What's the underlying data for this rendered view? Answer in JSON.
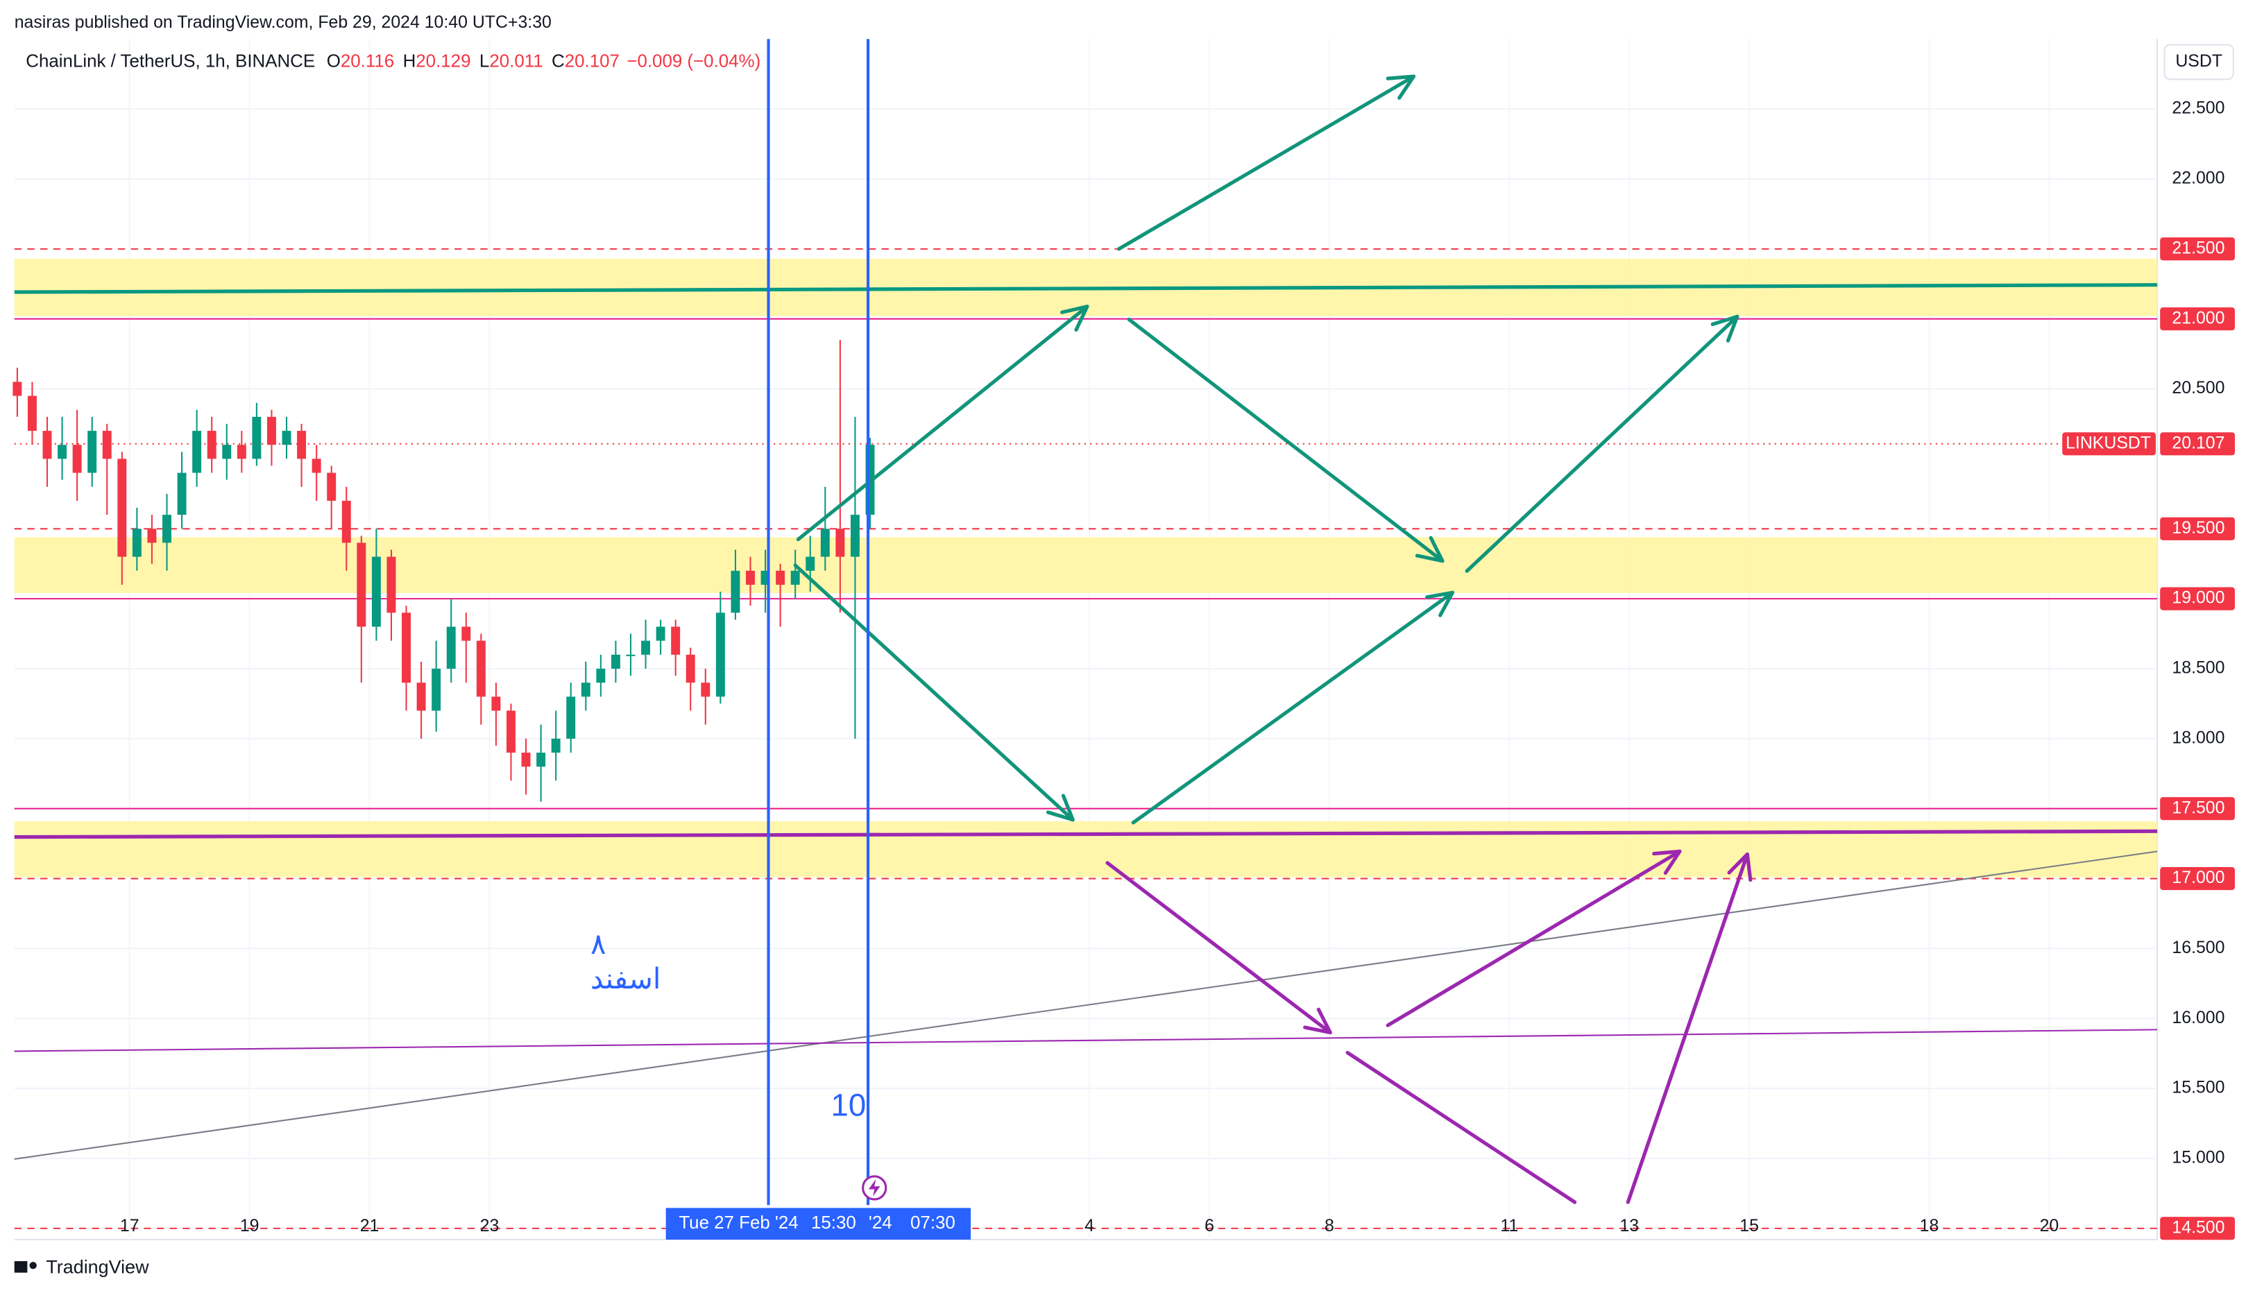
{
  "header": "nasiras published on TradingView.com, Feb 29, 2024 10:40 UTC+3:30",
  "footer": "TradingView",
  "currency": "USDT",
  "chart_data": {
    "type": "candlestick",
    "title": "ChainLink / TetherUS, 1h, BINANCE",
    "ohlc_legend": [
      {
        "key": "O",
        "value": 20.116
      },
      {
        "key": "H",
        "value": 20.129
      },
      {
        "key": "L",
        "value": 20.011
      },
      {
        "key": "C",
        "value": 20.107
      }
    ],
    "change": "−0.009 (−0.04%)",
    "up_color": "#089981",
    "down_color": "#f23645",
    "open": [
      20.55,
      20.45,
      20.2,
      20.0,
      20.1,
      19.9,
      20.2,
      20.0,
      19.3,
      19.5,
      19.4,
      19.6,
      19.9,
      20.2,
      20.0,
      20.1,
      20.0,
      20.3,
      20.1,
      20.2,
      20.0,
      19.9,
      19.7,
      19.4,
      18.8,
      19.3,
      18.9,
      18.4,
      18.2,
      18.5,
      18.8,
      18.7,
      18.3,
      18.2,
      17.9,
      17.8,
      17.9,
      18.0,
      18.3,
      18.4,
      18.5,
      18.6,
      18.6,
      18.7,
      18.8,
      18.6,
      18.4,
      18.3,
      18.9,
      19.2,
      19.1,
      19.2,
      19.1,
      19.2,
      19.3,
      19.5,
      19.3,
      19.6
    ],
    "high": [
      20.65,
      20.55,
      20.3,
      20.3,
      20.35,
      20.3,
      20.25,
      20.05,
      19.65,
      19.6,
      19.75,
      20.05,
      20.35,
      20.3,
      20.25,
      20.2,
      20.4,
      20.35,
      20.3,
      20.25,
      20.1,
      19.95,
      19.8,
      19.45,
      19.5,
      19.35,
      18.95,
      18.55,
      18.7,
      19.0,
      18.9,
      18.75,
      18.4,
      18.25,
      18.0,
      18.1,
      18.2,
      18.4,
      18.55,
      18.6,
      18.7,
      18.75,
      18.85,
      18.85,
      18.85,
      18.65,
      18.5,
      19.05,
      19.35,
      19.3,
      19.35,
      19.25,
      19.35,
      19.45,
      19.8,
      20.85,
      20.3,
      20.15
    ],
    "low": [
      20.3,
      20.1,
      19.8,
      19.85,
      19.7,
      19.8,
      19.6,
      19.1,
      19.2,
      19.25,
      19.2,
      19.5,
      19.8,
      19.9,
      19.85,
      19.9,
      19.95,
      19.95,
      20.0,
      19.8,
      19.7,
      19.5,
      19.2,
      18.4,
      18.7,
      18.7,
      18.2,
      18.0,
      18.05,
      18.4,
      18.4,
      18.1,
      17.95,
      17.7,
      17.6,
      17.55,
      17.7,
      17.9,
      18.2,
      18.3,
      18.4,
      18.45,
      18.5,
      18.6,
      18.45,
      18.2,
      18.1,
      18.25,
      18.85,
      18.95,
      18.9,
      18.8,
      19.0,
      19.05,
      19.2,
      18.9,
      18.0,
      19.5
    ],
    "close": [
      20.45,
      20.2,
      20.0,
      20.1,
      19.9,
      20.2,
      20.0,
      19.3,
      19.5,
      19.4,
      19.6,
      19.9,
      20.2,
      20.0,
      20.1,
      20.0,
      20.3,
      20.1,
      20.2,
      20.0,
      19.9,
      19.7,
      19.4,
      18.8,
      19.3,
      18.9,
      18.4,
      18.2,
      18.5,
      18.8,
      18.7,
      18.3,
      18.2,
      17.9,
      17.8,
      17.9,
      18.0,
      18.3,
      18.4,
      18.5,
      18.6,
      18.6,
      18.7,
      18.8,
      18.6,
      18.4,
      18.3,
      18.9,
      19.2,
      19.1,
      19.2,
      19.1,
      19.2,
      19.3,
      19.5,
      19.3,
      19.6,
      20.1
    ],
    "ylim": [
      14.42,
      23.0
    ],
    "yticks": [
      {
        "value": 22.5,
        "label": "22.500"
      },
      {
        "value": 22.0,
        "label": "22.000"
      },
      {
        "value": 20.5,
        "label": "20.500"
      },
      {
        "value": 18.5,
        "label": "18.500"
      },
      {
        "value": 18.0,
        "label": "18.000"
      },
      {
        "value": 16.5,
        "label": "16.500"
      },
      {
        "value": 16.0,
        "label": "16.000"
      },
      {
        "value": 15.5,
        "label": "15.500"
      },
      {
        "value": 15.0,
        "label": "15.000"
      }
    ],
    "grid": true,
    "levels": [
      {
        "value": 21.5,
        "label": "21.500",
        "style": "dashed"
      },
      {
        "value": 21.0,
        "label": "21.000",
        "style": "solid"
      },
      {
        "value": 19.5,
        "label": "19.500",
        "style": "dashed"
      },
      {
        "value": 19.0,
        "label": "19.000",
        "style": "solid"
      },
      {
        "value": 17.5,
        "label": "17.500",
        "style": "solid"
      },
      {
        "value": 17.0,
        "label": "17.000",
        "style": "dashed"
      },
      {
        "value": 14.5,
        "label": "14.500",
        "style": "dashed"
      }
    ],
    "zones": [
      [
        21.02,
        21.43
      ],
      [
        19.04,
        19.44
      ],
      [
        17.01,
        17.41
      ]
    ],
    "zone_color": "#fff59d",
    "last_price": {
      "symbol": "LINKUSDT",
      "value": 20.107
    },
    "xlim": [
      15.08,
      50.8
    ],
    "xticks": [
      {
        "value": 17,
        "label": "17"
      },
      {
        "value": 19,
        "label": "19"
      },
      {
        "value": 21,
        "label": "21"
      },
      {
        "value": 23,
        "label": "23"
      },
      {
        "value": 33,
        "label": "4"
      },
      {
        "value": 35,
        "label": "6"
      },
      {
        "value": 37,
        "label": "8"
      },
      {
        "value": 40,
        "label": "11"
      },
      {
        "value": 42,
        "label": "13"
      },
      {
        "value": 44,
        "label": "15"
      },
      {
        "value": 47,
        "label": "18"
      },
      {
        "value": 49,
        "label": "20"
      }
    ],
    "vlines": [
      27.65,
      29.31
    ],
    "cursor_labels": [
      "Tue 27 Feb '24",
      "15:30",
      "'24",
      "07:30"
    ],
    "annotations": [
      "10",
      "۸",
      "اسفند"
    ]
  }
}
